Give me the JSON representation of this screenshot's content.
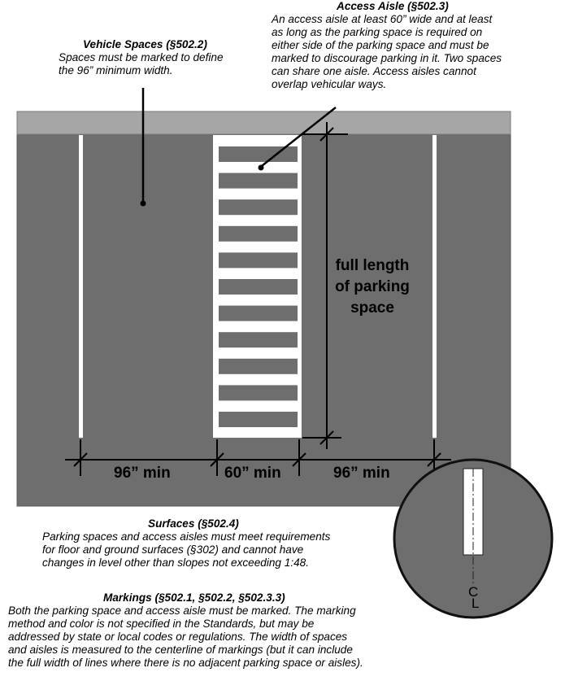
{
  "vehicle_spaces": {
    "title": "Vehicle Spaces (§502.2)",
    "lines": [
      "Spaces must be marked to define",
      "the 96” minimum width."
    ]
  },
  "access_aisle": {
    "title": "Access Aisle (§502.3)",
    "lines": [
      "An access aisle at least 60” wide and at least",
      "as long as the parking space is required on",
      "either side of the parking space and must be",
      "marked to discourage parking in it. Two spaces",
      "can share one aisle.  Access aisles cannot",
      "overlap vehicular ways."
    ]
  },
  "dimensions": {
    "left_width": "96” min",
    "aisle_width": "60” min",
    "right_width": "96” min",
    "length_lines": [
      "full length",
      "of parking",
      "space"
    ]
  },
  "detail": {
    "centerline_symbol": "CL"
  },
  "surfaces": {
    "title": "Surfaces (§502.4)",
    "lines": [
      "Parking spaces and access aisles must meet requirements",
      "for floor and ground surfaces (§302) and cannot have",
      "changes in level other than slopes not exceeding 1:48."
    ]
  },
  "markings": {
    "title": "Markings (§502.1, §502.2, §502.3.3)",
    "lines": [
      "Both the parking space and access aisle must be marked.  The marking",
      "method and color is not specified in the Standards, but may be",
      "addressed by state or local codes or regulations.  The width of spaces",
      "and aisles is measured to the centerline of markings (but it can include",
      "the full width of lines where there is no adjacent parking space or aisles)."
    ]
  },
  "colors": {
    "pavement": "#6e6e6e",
    "curb": "#a6a6a6",
    "marking": "#ffffff"
  }
}
